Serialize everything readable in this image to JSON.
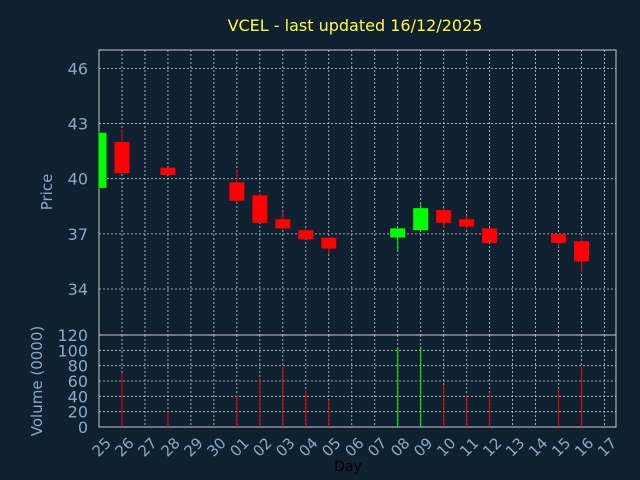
{
  "colors": {
    "background": "#0f2031",
    "text": "#8aa8c8",
    "title": "#ffff33",
    "grid": "#c8c8c8",
    "frame": "#c8c8c8",
    "up": "#00ff00",
    "down": "#ff0000",
    "xlabel": "#000000"
  },
  "chart_data": {
    "type": "candlestick",
    "title": "VCEL - last updated 16/12/2025",
    "xlabel": "Day",
    "price": {
      "ylabel": "Price",
      "ylim": [
        31.5,
        47
      ],
      "yticks": [
        34,
        37,
        40,
        43,
        46
      ],
      "grid": true
    },
    "volume": {
      "ylabel": "Volume (0000)",
      "ylim": [
        0,
        120
      ],
      "yticks": [
        0,
        20,
        40,
        60,
        80,
        100,
        120
      ],
      "grid": true
    },
    "x_ticks": [
      "25",
      "26",
      "27",
      "28",
      "29",
      "30",
      "01",
      "02",
      "03",
      "04",
      "05",
      "06",
      "07",
      "08",
      "09",
      "10",
      "11",
      "12",
      "13",
      "14",
      "15",
      "16",
      "17"
    ],
    "candles": [
      {
        "day": "25",
        "open": 39.5,
        "high": 42.6,
        "low": 39.4,
        "close": 42.5,
        "volume": 0
      },
      {
        "day": "26",
        "open": 42.0,
        "high": 42.7,
        "low": 40.3,
        "close": 40.3,
        "volume": 70
      },
      {
        "day": "28",
        "open": 40.6,
        "high": 40.6,
        "low": 40.2,
        "close": 40.2,
        "volume": 20
      },
      {
        "day": "01",
        "open": 39.8,
        "high": 40.5,
        "low": 38.7,
        "close": 38.8,
        "volume": 42
      },
      {
        "day": "02",
        "open": 39.1,
        "high": 39.2,
        "low": 37.6,
        "close": 37.6,
        "volume": 65
      },
      {
        "day": "03",
        "open": 37.8,
        "high": 38.2,
        "low": 37.3,
        "close": 37.3,
        "volume": 78
      },
      {
        "day": "04",
        "open": 37.2,
        "high": 37.3,
        "low": 36.7,
        "close": 36.7,
        "volume": 48
      },
      {
        "day": "05",
        "open": 36.8,
        "high": 36.8,
        "low": 35.9,
        "close": 36.2,
        "volume": 35
      },
      {
        "day": "08",
        "open": 36.8,
        "high": 37.3,
        "low": 36.0,
        "close": 37.3,
        "volume": 103
      },
      {
        "day": "09",
        "open": 37.2,
        "high": 38.6,
        "low": 37.1,
        "close": 38.4,
        "volume": 105
      },
      {
        "day": "10",
        "open": 38.3,
        "high": 38.4,
        "low": 37.3,
        "close": 37.6,
        "volume": 55
      },
      {
        "day": "11",
        "open": 37.8,
        "high": 38.0,
        "low": 37.3,
        "close": 37.4,
        "volume": 42
      },
      {
        "day": "12",
        "open": 37.3,
        "high": 37.3,
        "low": 36.5,
        "close": 36.5,
        "volume": 45
      },
      {
        "day": "15",
        "open": 37.0,
        "high": 37.0,
        "low": 36.3,
        "close": 36.5,
        "volume": 50
      },
      {
        "day": "16",
        "open": 36.6,
        "high": 36.8,
        "low": 34.9,
        "close": 35.5,
        "volume": 78
      }
    ]
  }
}
